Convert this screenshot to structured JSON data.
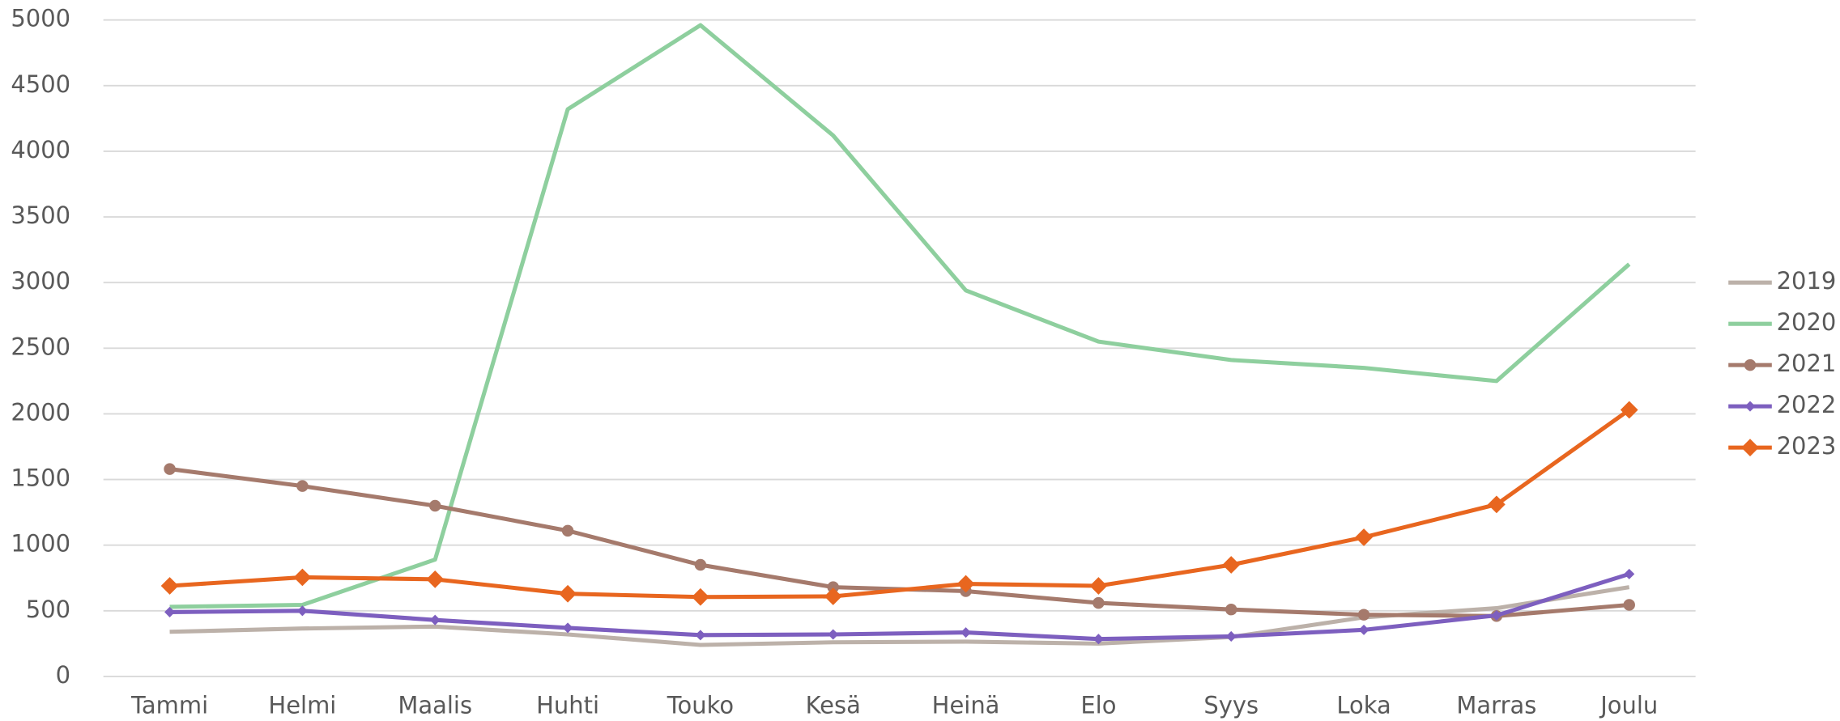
{
  "chart_data": {
    "type": "line",
    "categories": [
      "Tammi",
      "Helmi",
      "Maalis",
      "Huhti",
      "Touko",
      "Kesä",
      "Heinä",
      "Elo",
      "Syys",
      "Loka",
      "Marras",
      "Joulu"
    ],
    "series": [
      {
        "name": "2019",
        "color": "#bcb1a9",
        "marker": "none",
        "values": [
          340,
          365,
          380,
          320,
          240,
          260,
          265,
          250,
          300,
          450,
          520,
          680
        ]
      },
      {
        "name": "2020",
        "color": "#8ecf9e",
        "marker": "none",
        "values": [
          530,
          545,
          890,
          4320,
          4960,
          4120,
          2940,
          2550,
          2410,
          2350,
          2250,
          3140
        ]
      },
      {
        "name": "2021",
        "color": "#a57a6c",
        "marker": "circle",
        "values": [
          1580,
          1450,
          1300,
          1110,
          850,
          680,
          650,
          560,
          510,
          470,
          460,
          545
        ]
      },
      {
        "name": "2022",
        "color": "#7d5fbf",
        "marker": "small-diamond",
        "values": [
          490,
          500,
          430,
          370,
          315,
          320,
          335,
          285,
          305,
          355,
          465,
          780
        ]
      },
      {
        "name": "2023",
        "color": "#e8661f",
        "marker": "diamond",
        "values": [
          690,
          755,
          740,
          630,
          605,
          610,
          705,
          690,
          850,
          1060,
          1310,
          2030
        ]
      }
    ],
    "ylim": [
      0,
      5000
    ],
    "yticks": [
      0,
      500,
      1000,
      1500,
      2000,
      2500,
      3000,
      3500,
      4000,
      4500,
      5000
    ],
    "grid": true,
    "legend": "right"
  }
}
